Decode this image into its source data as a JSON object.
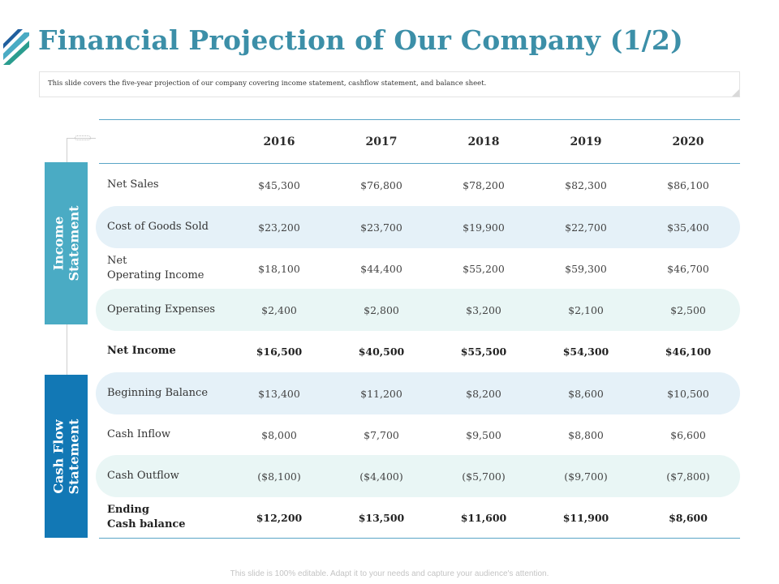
{
  "header": {
    "title": "Financial Projection of Our Company (1/2)",
    "subtitle": "This slide covers the five-year projection of our company covering income statement, cashflow statement, and balance sheet."
  },
  "colors": {
    "title": "#3c8fa8",
    "income_section": "#4aabc4",
    "cashflow_section": "#1278b5",
    "rule": "#5aa5c6",
    "band_blue": "#e5f1f8",
    "band_mint": "#e9f6f5"
  },
  "table": {
    "years": [
      "2016",
      "2017",
      "2018",
      "2019",
      "2020"
    ],
    "sections": {
      "income": "Income\nStatement",
      "cashflow": "Cash Flow\nStatement"
    },
    "rows": [
      {
        "label": "Net Sales",
        "values": [
          "$45,300",
          "$76,800",
          "$78,200",
          "$82,300",
          "$86,100"
        ]
      },
      {
        "label": "Cost of Goods Sold",
        "values": [
          "$23,200",
          "$23,700",
          "$19,900",
          "$22,700",
          "$35,400"
        ]
      },
      {
        "label": "Net\nOperating Income",
        "values": [
          "$18,100",
          "$44,400",
          "$55,200",
          "$59,300",
          "$46,700"
        ]
      },
      {
        "label": "Operating Expenses",
        "values": [
          "$2,400",
          "$2,800",
          "$3,200",
          "$2,100",
          "$2,500"
        ]
      },
      {
        "label": "Net Income",
        "values": [
          "$16,500",
          "$40,500",
          "$55,500",
          "$54,300",
          "$46,100"
        ]
      },
      {
        "label": "Beginning Balance",
        "values": [
          "$13,400",
          "$11,200",
          "$8,200",
          "$8,600",
          "$10,500"
        ]
      },
      {
        "label": "Cash Inflow",
        "values": [
          "$8,000",
          "$7,700",
          "$9,500",
          "$8,800",
          "$6,600"
        ]
      },
      {
        "label": "Cash Outflow",
        "values": [
          "($8,100)",
          "($4,400)",
          "($5,700)",
          "($9,700)",
          "($7,800)"
        ]
      },
      {
        "label": "Ending\nCash balance",
        "values": [
          "$12,200",
          "$13,500",
          "$11,600",
          "$11,900",
          "$8,600"
        ]
      }
    ]
  },
  "footer": {
    "text": "This slide is 100% editable. Adapt it to your needs and capture your audience's attention."
  }
}
